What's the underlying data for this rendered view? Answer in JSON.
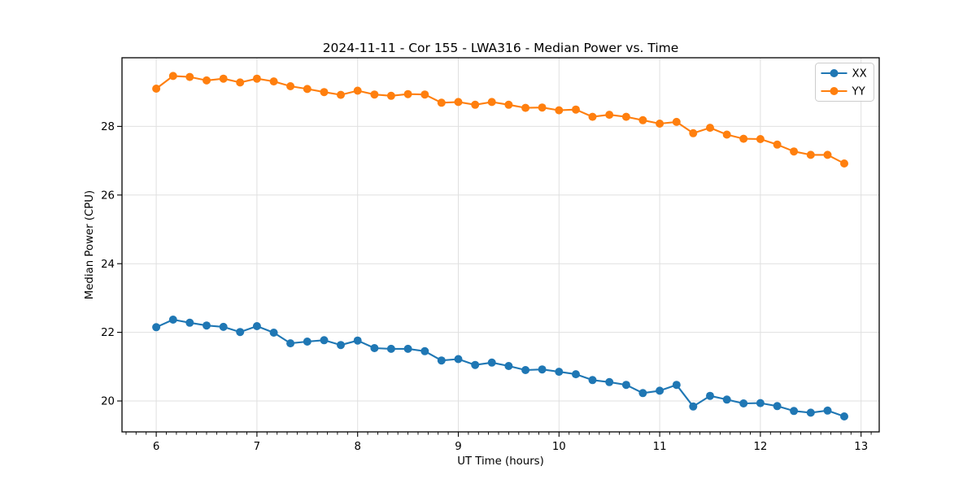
{
  "chart_data": {
    "type": "line",
    "title": "2024-11-11 - Cor 155 - LWA316 - Median Power vs. Time",
    "xlabel": "UT Time (hours)",
    "ylabel": "Median Power (CPU)",
    "xlim": [
      5.66,
      13.18
    ],
    "ylim": [
      19.1,
      30.0
    ],
    "x_ticks": [
      6,
      7,
      8,
      9,
      10,
      11,
      12,
      13
    ],
    "y_ticks": [
      20,
      22,
      24,
      26,
      28
    ],
    "x_minor_step": 0.1,
    "grid": true,
    "grid_color": "#e0e0e0",
    "frame_color": "#000000",
    "legend_position": "upper right",
    "x": [
      6.0,
      6.167,
      6.333,
      6.5,
      6.667,
      6.833,
      7.0,
      7.167,
      7.333,
      7.5,
      7.667,
      7.833,
      8.0,
      8.167,
      8.333,
      8.5,
      8.667,
      8.833,
      9.0,
      9.167,
      9.333,
      9.5,
      9.667,
      9.833,
      10.0,
      10.167,
      10.333,
      10.5,
      10.667,
      10.833,
      11.0,
      11.167,
      11.333,
      11.5,
      11.667,
      11.833,
      12.0,
      12.167,
      12.333,
      12.5,
      12.667,
      12.833
    ],
    "series": [
      {
        "name": "XX",
        "color": "#1f77b4",
        "values": [
          22.15,
          22.37,
          22.28,
          22.2,
          22.16,
          22.01,
          22.18,
          21.99,
          21.68,
          21.73,
          21.77,
          21.63,
          21.76,
          21.54,
          21.52,
          21.52,
          21.45,
          21.18,
          21.22,
          21.05,
          21.12,
          21.02,
          20.9,
          20.92,
          20.85,
          20.78,
          20.61,
          20.55,
          20.47,
          20.23,
          20.3,
          20.47,
          19.84,
          20.15,
          20.04,
          19.93,
          19.94,
          19.85,
          19.71,
          19.66,
          19.72,
          19.55
        ]
      },
      {
        "name": "YY",
        "color": "#ff7f0e",
        "values": [
          29.1,
          29.47,
          29.44,
          29.34,
          29.39,
          29.28,
          29.39,
          29.31,
          29.17,
          29.09,
          29.0,
          28.92,
          29.04,
          28.93,
          28.89,
          28.94,
          28.93,
          28.69,
          28.71,
          28.63,
          28.71,
          28.63,
          28.54,
          28.55,
          28.47,
          28.49,
          28.28,
          28.34,
          28.28,
          28.18,
          28.08,
          28.13,
          27.8,
          27.96,
          27.76,
          27.64,
          27.63,
          27.47,
          27.27,
          27.17,
          27.17,
          26.92
        ]
      }
    ]
  }
}
